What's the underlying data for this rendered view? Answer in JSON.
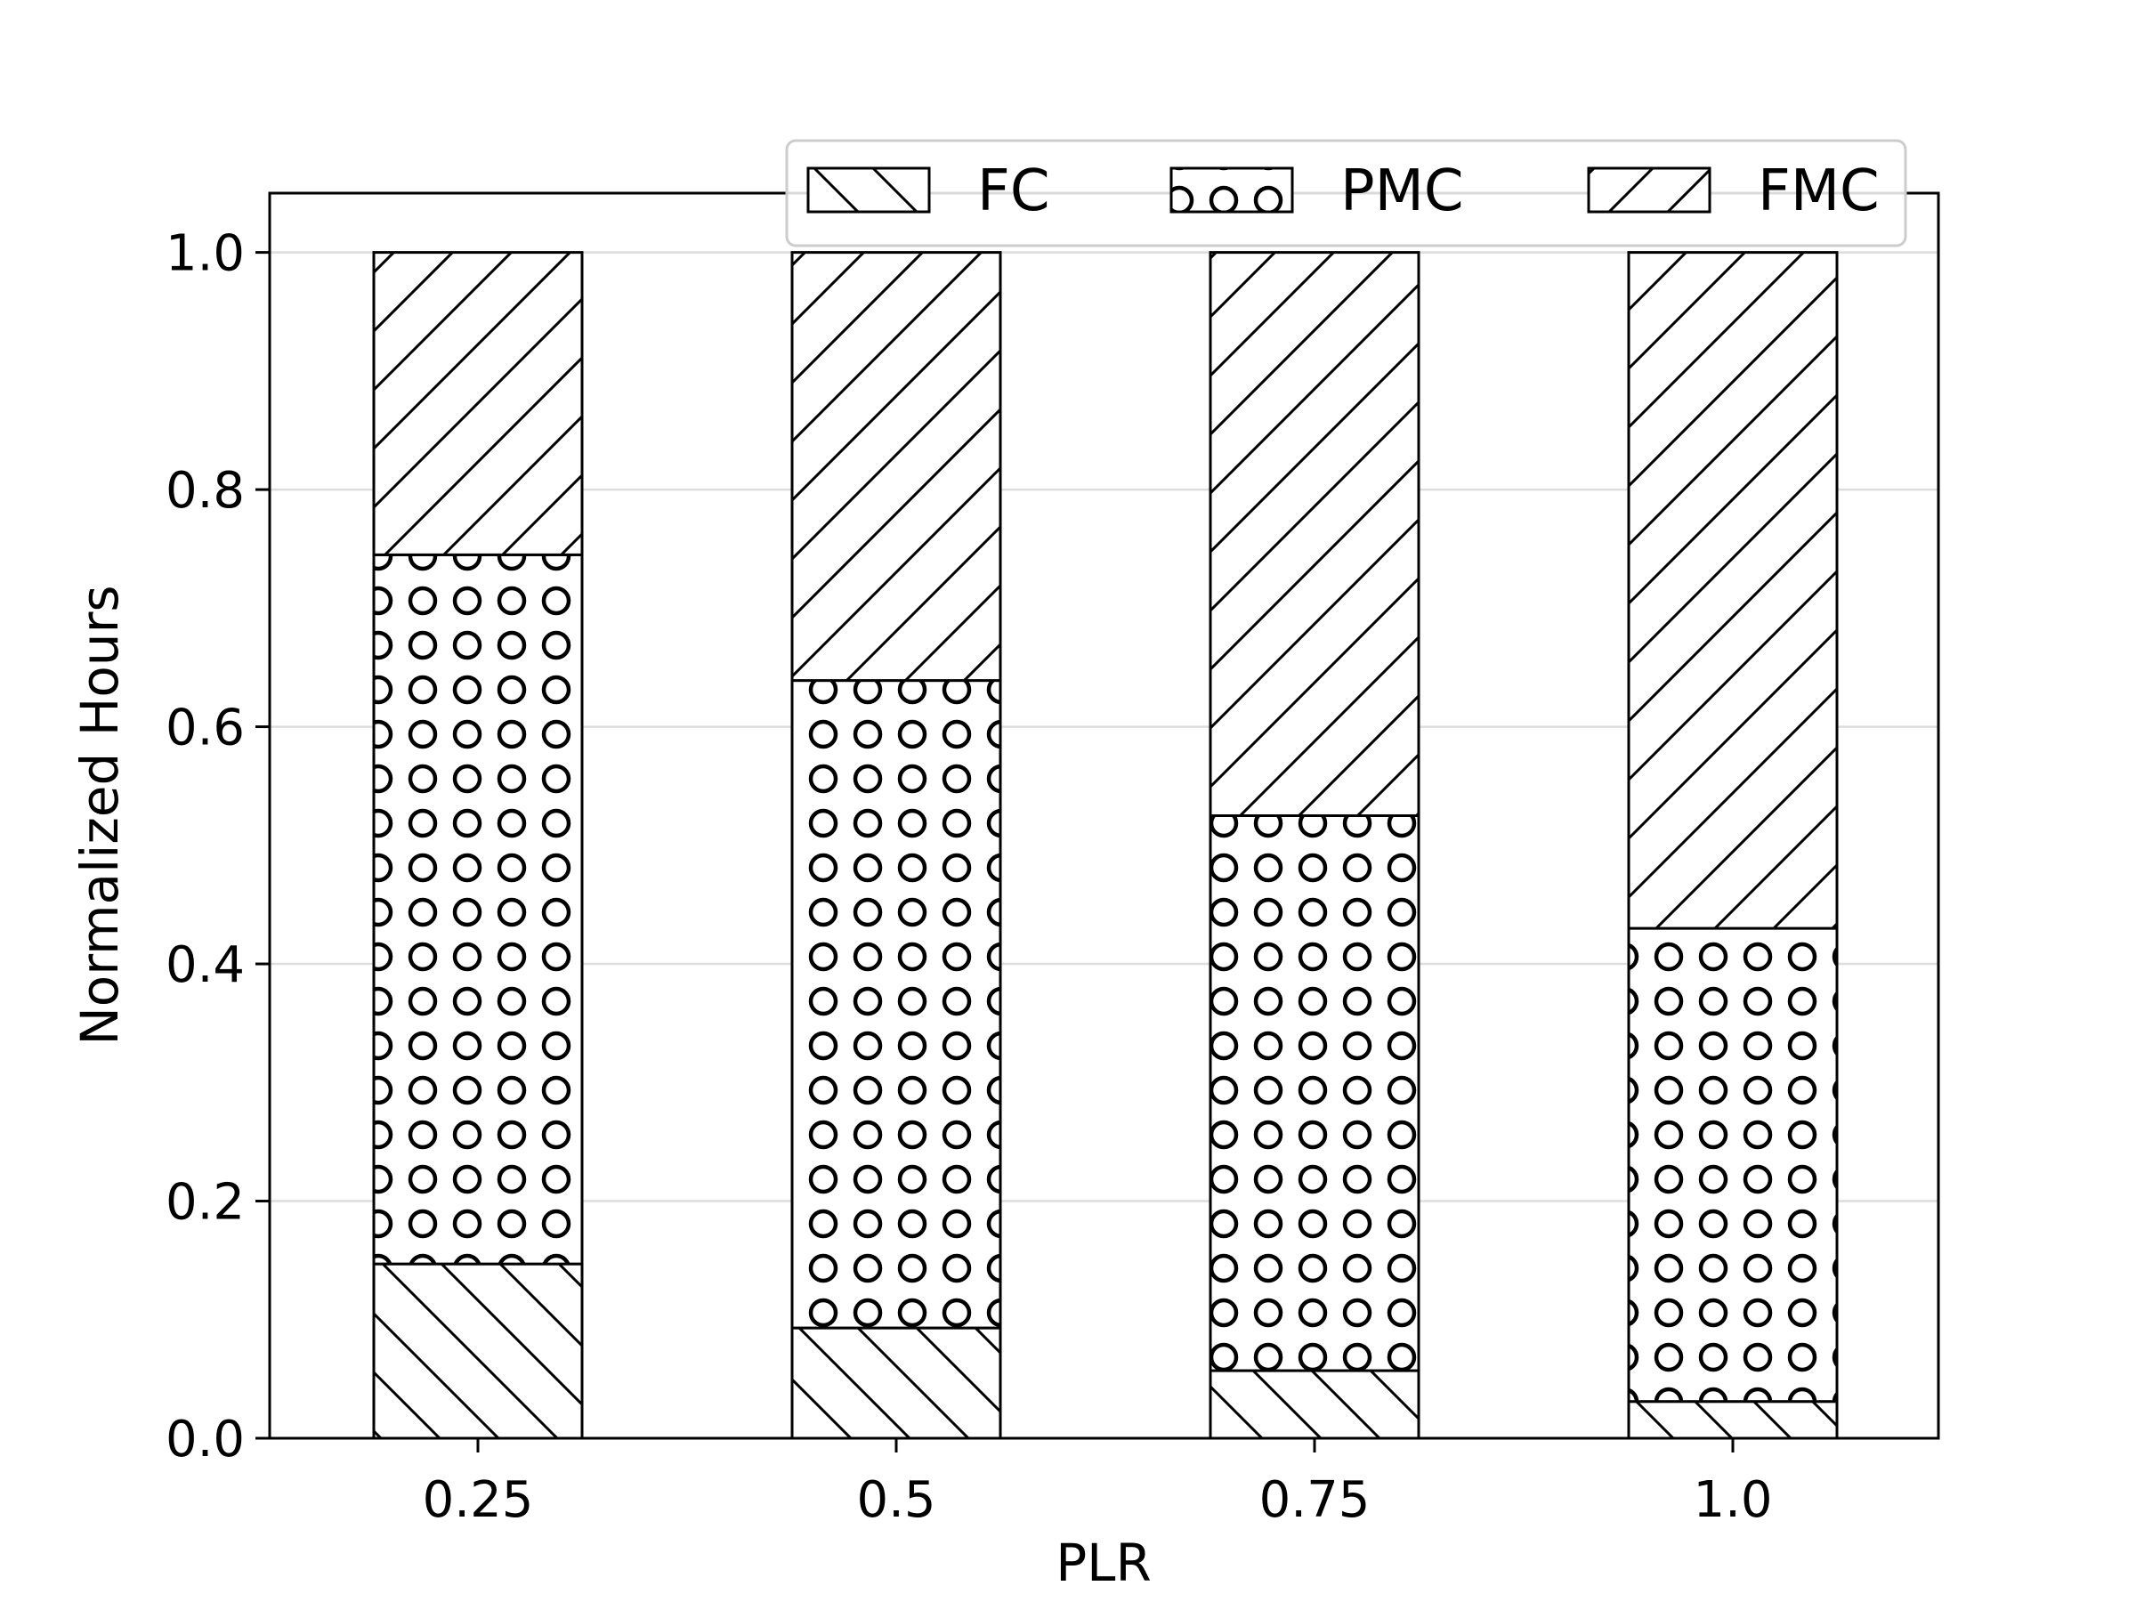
{
  "chart_data": {
    "type": "bar",
    "stacked": true,
    "categories": [
      "0.25",
      "0.5",
      "0.75",
      "1.0"
    ],
    "series": [
      {
        "name": "FC",
        "hatch": "backslash",
        "values": [
          0.147,
          0.093,
          0.057,
          0.031
        ]
      },
      {
        "name": "PMC",
        "hatch": "circles",
        "values": [
          0.598,
          0.546,
          0.468,
          0.399
        ]
      },
      {
        "name": "FMC",
        "hatch": "slash",
        "values": [
          0.255,
          0.361,
          0.475,
          0.57
        ]
      }
    ],
    "xlabel": "PLR",
    "ylabel": "Normalized Hours",
    "ylim": [
      0,
      1.05
    ],
    "yticks": [
      "0.0",
      "0.2",
      "0.4",
      "0.6",
      "0.8",
      "1.0"
    ],
    "grid": "horizontal",
    "legend_position": "top-right",
    "colors": {
      "bar_fill": "#ffffff",
      "edge": "#000000",
      "grid": "#dddddd"
    }
  }
}
